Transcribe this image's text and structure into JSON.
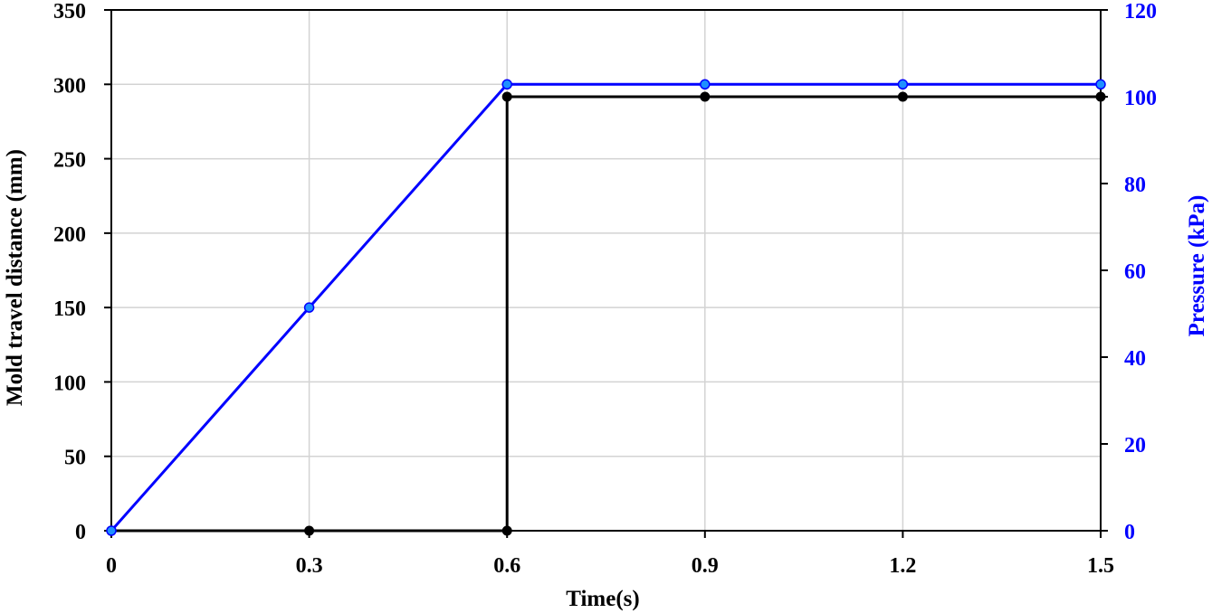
{
  "chart_data": {
    "type": "line",
    "title": "",
    "xlabel": "Time(s)",
    "ylabel_left": "Mold travel distance (mm)",
    "ylabel_right": "Pressure (kPa)",
    "xlim": [
      0,
      1.5
    ],
    "ylim_left": [
      0,
      350
    ],
    "ylim_right": [
      0,
      120
    ],
    "x_ticks": [
      "0",
      "0.3",
      "0.6",
      "0.9",
      "1.2",
      "1.5"
    ],
    "y_left_ticks": [
      "0",
      "50",
      "100",
      "150",
      "200",
      "250",
      "300",
      "350"
    ],
    "y_right_ticks": [
      "0",
      "20",
      "40",
      "60",
      "80",
      "100",
      "120"
    ],
    "grid": true,
    "colors": {
      "left_axis": "#000000",
      "right_axis": "#0000ff",
      "pressure_line": "#0000ff",
      "pressure_marker": "#1e90ff",
      "distance_line": "#000000",
      "grid": "#d3d3d3"
    },
    "series": [
      {
        "axis": "left",
        "color": "#0000ff",
        "x": [
          0,
          0.3,
          0.6,
          0.9,
          1.2,
          1.5
        ],
        "y": [
          0,
          150,
          300,
          300,
          300,
          300
        ]
      },
      {
        "axis": "right",
        "color": "#000000",
        "x": [
          0,
          0.3,
          0.6,
          0.6,
          0.9,
          1.2,
          1.5
        ],
        "y": [
          0,
          0,
          0,
          100,
          100,
          100,
          100
        ]
      }
    ]
  }
}
